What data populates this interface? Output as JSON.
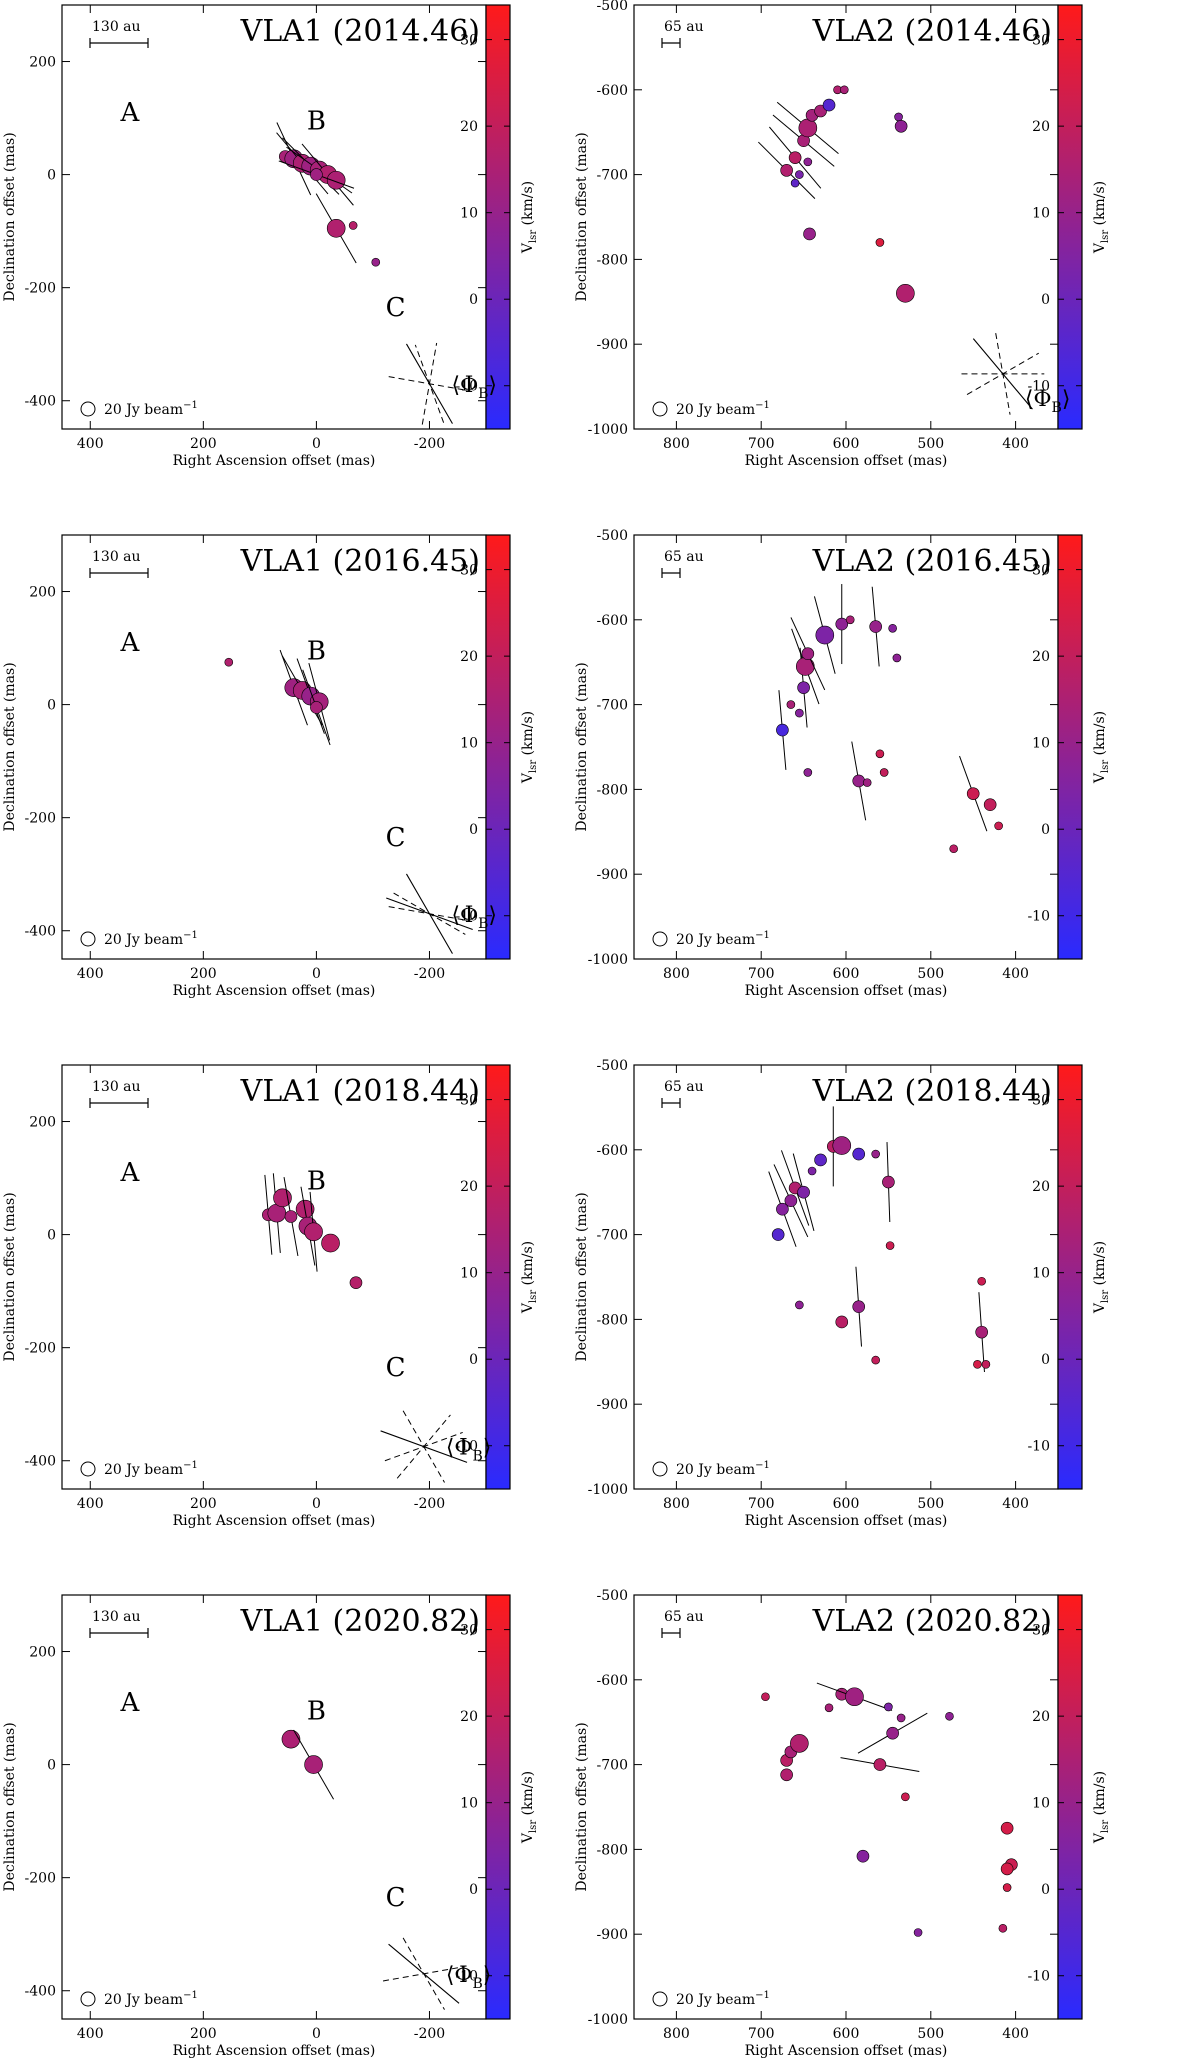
{
  "figure": {
    "common": {
      "xlabel": "Right Ascension offset (mas)",
      "ylabel": "Declination offset (mas)",
      "colorbar_label": "V",
      "colorbar_label_sub": "lsr",
      "colorbar_label_unit": " (km/s)",
      "beam_label": "20 Jy beam",
      "beam_label_sup": "−1",
      "phi_label": "Φ",
      "phi_sub": "B",
      "colorbar_range": [
        -15,
        34
      ],
      "colorbar_ticks": [
        -10,
        0,
        10,
        20,
        30
      ],
      "colors": {
        "low": "#2a2aff",
        "high": "#ff1a1a"
      }
    }
  },
  "chart_data": [
    {
      "type": "scatter",
      "title": "VLA1 (2014.46)",
      "scalebar_label": "130 au",
      "xlim": [
        450,
        -300
      ],
      "ylim": [
        -450,
        300
      ],
      "xticks": [
        400,
        200,
        0,
        -200
      ],
      "yticks": [
        -400,
        -200,
        0,
        200
      ],
      "region_labels": [
        {
          "text": "A",
          "x": 330,
          "y": 95
        },
        {
          "text": "B",
          "x": 0,
          "y": 80
        },
        {
          "text": "C",
          "x": -140,
          "y": -250
        }
      ],
      "phi_b": {
        "x": -200,
        "y": -370,
        "solid_angles": [
          150
        ],
        "dashed_angles": [
          100,
          10,
          -20
        ]
      },
      "points": [
        {
          "x": 55,
          "y": 32,
          "v": 14,
          "s": 2,
          "pa": null
        },
        {
          "x": 40,
          "y": 28,
          "v": 12,
          "s": 3,
          "pa": 155
        },
        {
          "x": 25,
          "y": 20,
          "v": 15,
          "s": 3,
          "pa": 140
        },
        {
          "x": 10,
          "y": 15,
          "v": 12,
          "s": 3,
          "pa": 135
        },
        {
          "x": -5,
          "y": 8,
          "v": 14,
          "s": 3,
          "pa": 125
        },
        {
          "x": -20,
          "y": 0,
          "v": 16,
          "s": 3,
          "pa": 140
        },
        {
          "x": -35,
          "y": -10,
          "v": 15,
          "s": 3,
          "pa": null
        },
        {
          "x": 0,
          "y": 0,
          "v": 12,
          "s": 2,
          "pa": 110
        },
        {
          "x": -35,
          "y": -95,
          "v": 16,
          "s": 3,
          "pa": 150
        },
        {
          "x": -65,
          "y": -90,
          "v": 17,
          "s": 1,
          "pa": null
        },
        {
          "x": -105,
          "y": -155,
          "v": 10,
          "s": 1,
          "pa": null
        }
      ]
    },
    {
      "type": "scatter",
      "title": "VLA2 (2014.46)",
      "scalebar_label": "65 au",
      "xlim": [
        850,
        350
      ],
      "ylim": [
        -1000,
        -500
      ],
      "xticks": [
        800,
        700,
        600,
        500,
        400
      ],
      "yticks": [
        -1000,
        -900,
        -800,
        -700,
        -600,
        -500
      ],
      "region_labels": [],
      "phi_b": {
        "x": 420,
        "y": -935,
        "solid_angles": [
          145
        ],
        "dashed_angles": [
          150
        ]
      },
      "points": [
        {
          "x": 670,
          "y": 695,
          "v": 16,
          "s": 2,
          "pa": 135
        },
        {
          "x": 660,
          "y": 680,
          "v": 18,
          "s": 2,
          "pa": 140
        },
        {
          "x": 650,
          "y": 660,
          "v": 14,
          "s": 2,
          "pa": 130
        },
        {
          "x": 645,
          "y": 645,
          "v": 15,
          "s": 3,
          "pa": 130
        },
        {
          "x": 640,
          "y": 630,
          "v": 13,
          "s": 2,
          "pa": null
        },
        {
          "x": 630,
          "y": 625,
          "v": 14,
          "s": 2,
          "pa": null
        },
        {
          "x": 620,
          "y": 618,
          "v": -5,
          "s": 2,
          "pa": null
        },
        {
          "x": 610,
          "y": 600,
          "v": 16,
          "s": 1,
          "pa": null
        },
        {
          "x": 602,
          "y": 600,
          "v": 14,
          "s": 1,
          "pa": null
        },
        {
          "x": 655,
          "y": 700,
          "v": 3,
          "s": 1,
          "pa": null
        },
        {
          "x": 660,
          "y": 710,
          "v": -3,
          "s": 1,
          "pa": null
        },
        {
          "x": 645,
          "y": 685,
          "v": 8,
          "s": 1,
          "pa": null
        },
        {
          "x": 643,
          "y": 770,
          "v": 10,
          "s": 2,
          "pa": null
        },
        {
          "x": 560,
          "y": 780,
          "v": 26,
          "s": 1,
          "pa": null
        },
        {
          "x": 538,
          "y": 632,
          "v": 6,
          "s": 1,
          "pa": null
        },
        {
          "x": 535,
          "y": 643,
          "v": 8,
          "s": 2,
          "pa": null
        },
        {
          "x": 530,
          "y": 840,
          "v": 16,
          "s": 3,
          "pa": null
        }
      ]
    },
    {
      "type": "scatter",
      "title": "VLA1 (2016.45)",
      "scalebar_label": "130 au",
      "xlim": [
        450,
        -300
      ],
      "ylim": [
        -450,
        300
      ],
      "xticks": [
        400,
        200,
        0,
        -200
      ],
      "yticks": [
        -400,
        -200,
        0,
        200
      ],
      "region_labels": [
        {
          "text": "A",
          "x": 330,
          "y": 95
        },
        {
          "text": "B",
          "x": 0,
          "y": 80
        },
        {
          "text": "C",
          "x": -140,
          "y": -250
        }
      ],
      "phi_b": {
        "x": -200,
        "y": -370,
        "solid_angles": [
          110,
          150
        ],
        "dashed_angles": [
          120,
          100
        ]
      },
      "points": [
        {
          "x": 155,
          "y": 75,
          "v": 16,
          "s": 1,
          "pa": null
        },
        {
          "x": 40,
          "y": 30,
          "v": 12,
          "s": 3,
          "pa": 160
        },
        {
          "x": 25,
          "y": 25,
          "v": 14,
          "s": 3,
          "pa": 150
        },
        {
          "x": 10,
          "y": 15,
          "v": 10,
          "s": 3,
          "pa": 160
        },
        {
          "x": -5,
          "y": 5,
          "v": 13,
          "s": 3,
          "pa": 165
        },
        {
          "x": 0,
          "y": -5,
          "v": 14,
          "s": 2,
          "pa": 160
        }
      ]
    },
    {
      "type": "scatter",
      "title": "VLA2 (2016.45)",
      "scalebar_label": "65 au",
      "xlim": [
        850,
        350
      ],
      "ylim": [
        -1000,
        -500
      ],
      "xticks": [
        800,
        700,
        600,
        500,
        400
      ],
      "yticks": [
        -1000,
        -900,
        -800,
        -700,
        -600,
        -500
      ],
      "region_labels": [],
      "phi_b": {
        "x": 420,
        "y": -935,
        "solid_angles": [
          80,
          100
        ],
        "dashed_angles": [
          70,
          120
        ]
      },
      "points": [
        {
          "x": 675,
          "y": 730,
          "v": -8,
          "s": 2,
          "pa": 175
        },
        {
          "x": 665,
          "y": 700,
          "v": 14,
          "s": 1,
          "pa": null
        },
        {
          "x": 655,
          "y": 710,
          "v": 6,
          "s": 1,
          "pa": null
        },
        {
          "x": 650,
          "y": 680,
          "v": 4,
          "s": 2,
          "pa": 175
        },
        {
          "x": 648,
          "y": 655,
          "v": 14,
          "s": 3,
          "pa": 160
        },
        {
          "x": 645,
          "y": 640,
          "v": 12,
          "s": 2,
          "pa": 155
        },
        {
          "x": 625,
          "y": 618,
          "v": 4,
          "s": 3,
          "pa": 165
        },
        {
          "x": 605,
          "y": 605,
          "v": 8,
          "s": 2,
          "pa": 180
        },
        {
          "x": 595,
          "y": 600,
          "v": 14,
          "s": 1,
          "pa": null
        },
        {
          "x": 565,
          "y": 608,
          "v": 10,
          "s": 2,
          "pa": 175
        },
        {
          "x": 545,
          "y": 610,
          "v": 6,
          "s": 1,
          "pa": null
        },
        {
          "x": 540,
          "y": 645,
          "v": 8,
          "s": 1,
          "pa": null
        },
        {
          "x": 645,
          "y": 780,
          "v": 8,
          "s": 1,
          "pa": null
        },
        {
          "x": 585,
          "y": 790,
          "v": 10,
          "s": 2,
          "pa": 170
        },
        {
          "x": 575,
          "y": 792,
          "v": 12,
          "s": 1,
          "pa": null
        },
        {
          "x": 560,
          "y": 758,
          "v": 22,
          "s": 1,
          "pa": null
        },
        {
          "x": 555,
          "y": 780,
          "v": 20,
          "s": 1,
          "pa": null
        },
        {
          "x": 450,
          "y": 805,
          "v": 22,
          "s": 2,
          "pa": 160
        },
        {
          "x": 430,
          "y": 818,
          "v": 20,
          "s": 2,
          "pa": null
        },
        {
          "x": 420,
          "y": 843,
          "v": 22,
          "s": 1,
          "pa": null
        },
        {
          "x": 473,
          "y": 870,
          "v": 18,
          "s": 1,
          "pa": null
        }
      ]
    },
    {
      "type": "scatter",
      "title": "VLA1 (2018.44)",
      "scalebar_label": "130 au",
      "xlim": [
        450,
        -300
      ],
      "ylim": [
        -450,
        300
      ],
      "xticks": [
        400,
        200,
        0,
        -200
      ],
      "yticks": [
        -400,
        -200,
        0,
        200
      ],
      "region_labels": [
        {
          "text": "A",
          "x": 330,
          "y": 95
        },
        {
          "text": "B",
          "x": 0,
          "y": 80
        },
        {
          "text": "C",
          "x": -140,
          "y": -250
        }
      ],
      "phi_b": {
        "x": -190,
        "y": -375,
        "solid_angles": [
          110
        ],
        "dashed_angles": [
          70,
          150,
          40
        ]
      },
      "points": [
        {
          "x": 85,
          "y": 35,
          "v": 15,
          "s": 2,
          "pa": 175
        },
        {
          "x": 70,
          "y": 38,
          "v": 14,
          "s": 3,
          "pa": 175
        },
        {
          "x": 60,
          "y": 65,
          "v": 16,
          "s": 3,
          "pa": null
        },
        {
          "x": 45,
          "y": 32,
          "v": 14,
          "s": 2,
          "pa": 170
        },
        {
          "x": 20,
          "y": 45,
          "v": 16,
          "s": 3,
          "pa": null
        },
        {
          "x": 15,
          "y": 15,
          "v": 14,
          "s": 3,
          "pa": 170
        },
        {
          "x": 5,
          "y": 5,
          "v": 16,
          "s": 3,
          "pa": 175
        },
        {
          "x": -25,
          "y": -15,
          "v": 18,
          "s": 3,
          "pa": null
        },
        {
          "x": -70,
          "y": -85,
          "v": 17,
          "s": 2,
          "pa": null
        }
      ]
    },
    {
      "type": "scatter",
      "title": "VLA2 (2018.44)",
      "scalebar_label": "65 au",
      "xlim": [
        850,
        350
      ],
      "ylim": [
        -1000,
        -500
      ],
      "xticks": [
        800,
        700,
        600,
        500,
        400
      ],
      "yticks": [
        -1000,
        -900,
        -800,
        -700,
        -600,
        -500
      ],
      "region_labels": [],
      "phi_b": {
        "x": 420,
        "y": -935,
        "solid_angles": [
          110
        ],
        "dashed_angles": [
          80,
          150,
          30
        ]
      },
      "points": [
        {
          "x": 680,
          "y": 700,
          "v": -5,
          "s": 2,
          "pa": null
        },
        {
          "x": 675,
          "y": 670,
          "v": 6,
          "s": 2,
          "pa": 160
        },
        {
          "x": 665,
          "y": 660,
          "v": 8,
          "s": 2,
          "pa": 155
        },
        {
          "x": 660,
          "y": 645,
          "v": 16,
          "s": 2,
          "pa": 160
        },
        {
          "x": 650,
          "y": 650,
          "v": 4,
          "s": 2,
          "pa": 165
        },
        {
          "x": 640,
          "y": 625,
          "v": 4,
          "s": 1,
          "pa": null
        },
        {
          "x": 630,
          "y": 612,
          "v": -3,
          "s": 2,
          "pa": null
        },
        {
          "x": 615,
          "y": 596,
          "v": 18,
          "s": 2,
          "pa": 180
        },
        {
          "x": 605,
          "y": 595,
          "v": 12,
          "s": 3,
          "pa": null
        },
        {
          "x": 585,
          "y": 605,
          "v": -5,
          "s": 2,
          "pa": null
        },
        {
          "x": 565,
          "y": 605,
          "v": 10,
          "s": 1,
          "pa": null
        },
        {
          "x": 550,
          "y": 638,
          "v": 14,
          "s": 2,
          "pa": 178
        },
        {
          "x": 548,
          "y": 713,
          "v": 22,
          "s": 1,
          "pa": null
        },
        {
          "x": 655,
          "y": 783,
          "v": 8,
          "s": 1,
          "pa": null
        },
        {
          "x": 585,
          "y": 785,
          "v": 10,
          "s": 2,
          "pa": 176
        },
        {
          "x": 605,
          "y": 803,
          "v": 18,
          "s": 2,
          "pa": null
        },
        {
          "x": 565,
          "y": 848,
          "v": 20,
          "s": 1,
          "pa": null
        },
        {
          "x": 440,
          "y": 755,
          "v": 22,
          "s": 1,
          "pa": null
        },
        {
          "x": 440,
          "y": 815,
          "v": 14,
          "s": 2,
          "pa": 176
        },
        {
          "x": 445,
          "y": 853,
          "v": 24,
          "s": 1,
          "pa": null
        },
        {
          "x": 435,
          "y": 853,
          "v": 20,
          "s": 1,
          "pa": null
        }
      ]
    },
    {
      "type": "scatter",
      "title": "VLA1 (2020.82)",
      "scalebar_label": "130 au",
      "xlim": [
        450,
        -300
      ],
      "ylim": [
        -450,
        300
      ],
      "xticks": [
        400,
        200,
        0,
        -200
      ],
      "yticks": [
        -400,
        -200,
        0,
        200
      ],
      "region_labels": [
        {
          "text": "A",
          "x": 330,
          "y": 95
        },
        {
          "text": "B",
          "x": 0,
          "y": 80
        },
        {
          "text": "C",
          "x": -140,
          "y": -250
        }
      ],
      "phi_b": {
        "x": -190,
        "y": -370,
        "solid_angles": [
          130
        ],
        "dashed_angles": [
          80,
          150
        ]
      },
      "points": [
        {
          "x": 45,
          "y": 45,
          "v": 15,
          "s": 3,
          "pa": null
        },
        {
          "x": 5,
          "y": 0,
          "v": 14,
          "s": 3,
          "pa": 150
        }
      ]
    },
    {
      "type": "scatter",
      "title": "VLA2 (2020.82)",
      "scalebar_label": "65 au",
      "xlim": [
        850,
        350
      ],
      "ylim": [
        -1000,
        -500
      ],
      "xticks": [
        800,
        700,
        600,
        500,
        400
      ],
      "yticks": [
        -1000,
        -900,
        -800,
        -700,
        -600,
        -500
      ],
      "region_labels": [],
      "phi_b": {
        "x": 415,
        "y": -940,
        "solid_angles": [
          140
        ],
        "dashed_angles": [
          90,
          170,
          60
        ]
      },
      "points": [
        {
          "x": 695,
          "y": 620,
          "v": 20,
          "s": 1,
          "pa": null
        },
        {
          "x": 670,
          "y": 695,
          "v": 18,
          "s": 2,
          "pa": null
        },
        {
          "x": 665,
          "y": 685,
          "v": 14,
          "s": 2,
          "pa": null
        },
        {
          "x": 655,
          "y": 675,
          "v": 16,
          "s": 3,
          "pa": null
        },
        {
          "x": 670,
          "y": 712,
          "v": 16,
          "s": 2,
          "pa": null
        },
        {
          "x": 620,
          "y": 633,
          "v": 14,
          "s": 1,
          "pa": null
        },
        {
          "x": 605,
          "y": 617,
          "v": 14,
          "s": 2,
          "pa": null
        },
        {
          "x": 590,
          "y": 620,
          "v": 12,
          "s": 3,
          "pa": 110
        },
        {
          "x": 580,
          "y": 808,
          "v": 6,
          "s": 2,
          "pa": null
        },
        {
          "x": 560,
          "y": 700,
          "v": 18,
          "s": 2,
          "pa": 100
        },
        {
          "x": 550,
          "y": 632,
          "v": 4,
          "s": 1,
          "pa": null
        },
        {
          "x": 545,
          "y": 663,
          "v": 10,
          "s": 2,
          "pa": 60
        },
        {
          "x": 535,
          "y": 645,
          "v": 10,
          "s": 1,
          "pa": null
        },
        {
          "x": 530,
          "y": 738,
          "v": 22,
          "s": 1,
          "pa": null
        },
        {
          "x": 515,
          "y": 898,
          "v": 6,
          "s": 1,
          "pa": null
        },
        {
          "x": 478,
          "y": 643,
          "v": 8,
          "s": 1,
          "pa": null
        },
        {
          "x": 410,
          "y": 775,
          "v": 24,
          "s": 2,
          "pa": null
        },
        {
          "x": 405,
          "y": 818,
          "v": 22,
          "s": 2,
          "pa": null
        },
        {
          "x": 410,
          "y": 823,
          "v": 24,
          "s": 2,
          "pa": null
        },
        {
          "x": 410,
          "y": 845,
          "v": 24,
          "s": 1,
          "pa": null
        },
        {
          "x": 415,
          "y": 893,
          "v": 18,
          "s": 1,
          "pa": null
        }
      ]
    }
  ]
}
